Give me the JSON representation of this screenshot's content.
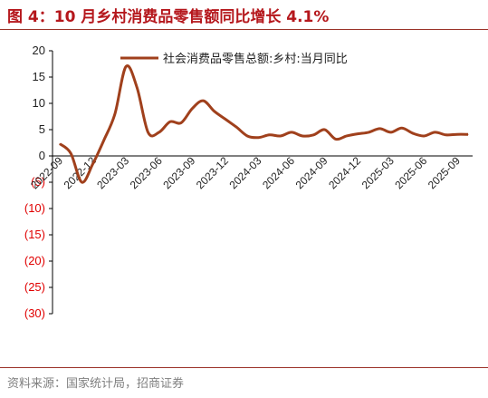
{
  "title": "图 4：10 月乡村消费品零售额同比增长 4.1%",
  "source": "资料来源：国家统计局，招商证券",
  "colors": {
    "accent": "#b5171c",
    "line": "#a0401c",
    "negative": "#e00000",
    "text": "#222222"
  },
  "chart_data": {
    "type": "line",
    "title": "",
    "xlabel": "",
    "ylabel": "",
    "ylim": [
      -30,
      20
    ],
    "yticks": [
      20,
      15,
      10,
      5,
      0,
      -5,
      -10,
      -15,
      -20,
      -25,
      -30
    ],
    "ytick_labels": [
      "20",
      "15",
      "10",
      "5",
      "0",
      "(5)",
      "(10)",
      "(15)",
      "(20)",
      "(25)",
      "(30)"
    ],
    "xtick_labels": [
      "2022-09",
      "2022-12",
      "2023-03",
      "2023-06",
      "2023-09",
      "2023-12",
      "2024-03",
      "2024-06",
      "2024-09",
      "2024-12",
      "2025-03",
      "2025-06",
      "2025-09"
    ],
    "grid": false,
    "legend_position": "top",
    "series": [
      {
        "name": "社会消费品零售总额:乡村:当月同比",
        "x": [
          "2022-09",
          "2022-10",
          "2022-11",
          "2022-12",
          "2023-01",
          "2023-02",
          "2023-03",
          "2023-04",
          "2023-05",
          "2023-06",
          "2023-07",
          "2023-08",
          "2023-09",
          "2023-10",
          "2023-11",
          "2023-12",
          "2024-01",
          "2024-02",
          "2024-03",
          "2024-04",
          "2024-05",
          "2024-06",
          "2024-07",
          "2024-08",
          "2024-09",
          "2024-10",
          "2024-11",
          "2024-12",
          "2025-01",
          "2025-02",
          "2025-03",
          "2025-04",
          "2025-05",
          "2025-06",
          "2025-07",
          "2025-08",
          "2025-09",
          "2025-10"
        ],
        "values": [
          2.3,
          0.5,
          -5.0,
          -1.5,
          3.0,
          8.0,
          17.0,
          13.0,
          4.5,
          4.5,
          6.5,
          6.3,
          9.0,
          10.5,
          8.5,
          7.0,
          5.5,
          3.8,
          3.5,
          4.0,
          3.8,
          4.5,
          3.8,
          4.0,
          5.0,
          3.2,
          3.8,
          4.2,
          4.5,
          5.2,
          4.5,
          5.3,
          4.3,
          3.8,
          4.5,
          4.0,
          4.1,
          4.1
        ]
      }
    ]
  }
}
